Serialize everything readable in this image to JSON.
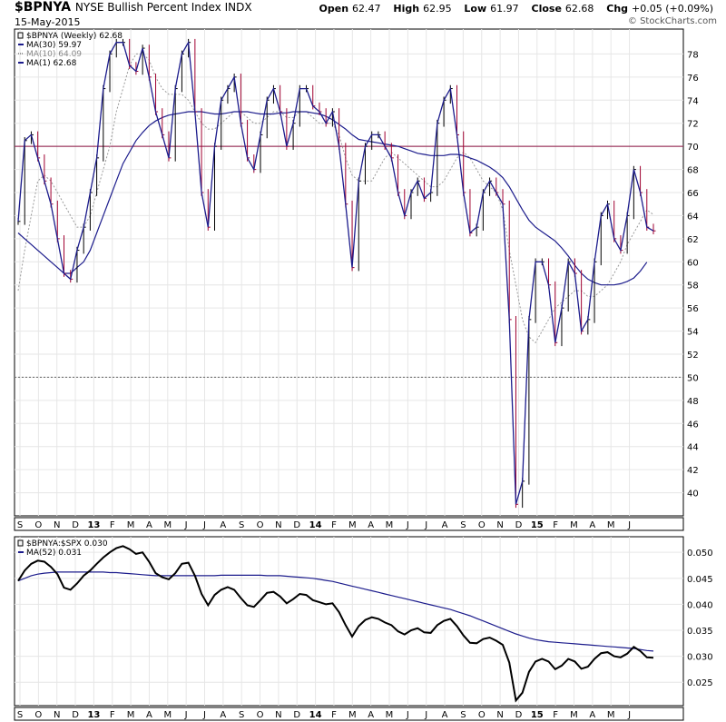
{
  "header": {
    "symbol": "$BPNYA",
    "description": "NYSE Bullish Percent Index",
    "exchange": "INDX",
    "date": "15-May-2015",
    "open_label": "Open",
    "open": "62.47",
    "high_label": "High",
    "high": "62.95",
    "low_label": "Low",
    "low": "61.97",
    "close_label": "Close",
    "close": "62.68",
    "chg_label": "Chg",
    "chg": "+0.05 (+0.09%)",
    "credit": "© StockCharts.com"
  },
  "colors": {
    "up": "#000000",
    "down": "#a00030",
    "ma30": "#1c1c8c",
    "ma10": "#999999",
    "ref": "#8b1040",
    "ratio": "#000000",
    "ma52": "#1c1c8c"
  },
  "chart_data": [
    {
      "type": "line",
      "title": "$BPNYA (Weekly) 62.68",
      "legend": [
        {
          "label": "$BPNYA (Weekly) 62.68",
          "color": "#000000"
        },
        {
          "label": "MA(30) 59.97",
          "color": "#1c1c8c"
        },
        {
          "label": "MA(10) 64.09",
          "color": "#999999"
        },
        {
          "label": "MA(1) 62.68",
          "color": "#1c1c8c"
        }
      ],
      "legend_position": "top-left",
      "x_tick_labels": [
        "S",
        "O",
        "N",
        "D",
        "13",
        "F",
        "M",
        "A",
        "M",
        "J",
        "J",
        "A",
        "S",
        "O",
        "N",
        "D",
        "14",
        "F",
        "M",
        "A",
        "M",
        "J",
        "J",
        "A",
        "S",
        "O",
        "N",
        "D",
        "15",
        "F",
        "M",
        "A",
        "M",
        "J"
      ],
      "y_ticks": [
        40,
        42,
        44,
        46,
        48,
        50,
        52,
        54,
        56,
        58,
        60,
        62,
        64,
        66,
        68,
        70,
        72,
        74,
        76,
        78
      ],
      "ylim": [
        38,
        80
      ],
      "grid": true,
      "reference_lines": [
        {
          "y": 70,
          "style": "solid"
        },
        {
          "y": 50,
          "style": "dotted"
        }
      ],
      "series": [
        {
          "name": "$BPNYA",
          "values": [
            63.5,
            70.5,
            71,
            69,
            67,
            65,
            62,
            59,
            58.5,
            61,
            63,
            66,
            69,
            75,
            78,
            79,
            79,
            77,
            76.5,
            78.5,
            76,
            73,
            71,
            69,
            75,
            78,
            79,
            73,
            66,
            63,
            70,
            74,
            75,
            76,
            72,
            69,
            68,
            71,
            74,
            75,
            73,
            70,
            72,
            75,
            75,
            73.5,
            73,
            72,
            73,
            70,
            65,
            59.5,
            67,
            70,
            71,
            71,
            70,
            69,
            66,
            64,
            66,
            67,
            65.5,
            66,
            72,
            74,
            75,
            71,
            66,
            62.5,
            63,
            66,
            67,
            66,
            65,
            55,
            39,
            41,
            55,
            60,
            60,
            58,
            53,
            56,
            60,
            59,
            54,
            55,
            60,
            64,
            65,
            62,
            61,
            64,
            68,
            66,
            63,
            62.68
          ]
        },
        {
          "name": "MA(30)",
          "values": [
            62.5,
            62,
            61.5,
            61,
            60.5,
            60,
            59.5,
            59,
            59,
            59.5,
            60,
            61,
            62.5,
            64,
            65.5,
            67,
            68.5,
            69.5,
            70.5,
            71.2,
            71.8,
            72.2,
            72.5,
            72.7,
            72.8,
            72.9,
            73,
            73,
            73,
            72.9,
            72.8,
            72.8,
            72.9,
            73,
            73,
            73,
            72.9,
            72.8,
            72.8,
            72.8,
            72.9,
            72.9,
            73,
            73,
            73,
            72.9,
            72.8,
            72.6,
            72.3,
            71.9,
            71.5,
            71,
            70.6,
            70.5,
            70.4,
            70.3,
            70.2,
            70.1,
            70,
            69.8,
            69.6,
            69.4,
            69.3,
            69.2,
            69.2,
            69.2,
            69.3,
            69.3,
            69.2,
            69,
            68.8,
            68.5,
            68.2,
            67.8,
            67.3,
            66.5,
            65.5,
            64.5,
            63.6,
            63,
            62.6,
            62.2,
            61.8,
            61.2,
            60.5,
            59.7,
            59,
            58.5,
            58.2,
            58,
            58,
            58,
            58.1,
            58.3,
            58.6,
            59.2,
            59.97
          ]
        },
        {
          "name": "MA(10)",
          "values": [
            57.5,
            61,
            64,
            67,
            67.5,
            67,
            66,
            65,
            64,
            63,
            63,
            64,
            66,
            68,
            70,
            73,
            75,
            77,
            78,
            78,
            77.5,
            76,
            75,
            74.5,
            74.5,
            74.5,
            74,
            73,
            72,
            71.5,
            71.5,
            72,
            72.5,
            73,
            73,
            72.5,
            72,
            72,
            72.5,
            73,
            73,
            72.5,
            72.5,
            73,
            73,
            72.5,
            72,
            72,
            72,
            71,
            69,
            67.5,
            67,
            67,
            67,
            68,
            69,
            69.5,
            69,
            68.5,
            68,
            67.5,
            67,
            66.5,
            66.5,
            67,
            68,
            69,
            69.5,
            69,
            68,
            67,
            66.5,
            66,
            64.5,
            61,
            58,
            55,
            53.5,
            53,
            54,
            55,
            56,
            56.5,
            57,
            57.5,
            57.5,
            57,
            57,
            57.5,
            58,
            59,
            60,
            61.5,
            62.5,
            63.5,
            64.5,
            64.09
          ]
        }
      ]
    },
    {
      "type": "line",
      "title": "$BPNYA:$SPX 0.030",
      "legend": [
        {
          "label": "$BPNYA:$SPX 0.030",
          "color": "#000000"
        },
        {
          "label": "MA(52) 0.031",
          "color": "#1c1c8c"
        }
      ],
      "legend_position": "top-left",
      "y_ticks": [
        0.025,
        0.03,
        0.035,
        0.04,
        0.045,
        0.05
      ],
      "y_tick_labels": [
        "0.025",
        "0.030",
        "0.035",
        "0.040",
        "0.045",
        "0.050"
      ],
      "ylim": [
        0.0205,
        0.053
      ],
      "grid": true,
      "series": [
        {
          "name": "$BPNYA:$SPX",
          "values": [
            0.0445,
            0.0465,
            0.0478,
            0.0484,
            0.0482,
            0.0472,
            0.0458,
            0.0432,
            0.0428,
            0.044,
            0.0455,
            0.0465,
            0.0478,
            0.049,
            0.05,
            0.0508,
            0.0512,
            0.0506,
            0.0497,
            0.05,
            0.0482,
            0.046,
            0.0452,
            0.0448,
            0.046,
            0.0478,
            0.048,
            0.0455,
            0.042,
            0.0398,
            0.0418,
            0.0428,
            0.0433,
            0.0428,
            0.0412,
            0.0398,
            0.0395,
            0.0408,
            0.0422,
            0.0424,
            0.0415,
            0.0402,
            0.041,
            0.042,
            0.0418,
            0.0408,
            0.0404,
            0.04,
            0.0402,
            0.0385,
            0.036,
            0.0338,
            0.0358,
            0.037,
            0.0375,
            0.0372,
            0.0365,
            0.036,
            0.0348,
            0.0342,
            0.035,
            0.0354,
            0.0346,
            0.0345,
            0.036,
            0.0368,
            0.0372,
            0.0358,
            0.034,
            0.0326,
            0.0325,
            0.0333,
            0.0336,
            0.033,
            0.0322,
            0.0288,
            0.0215,
            0.023,
            0.027,
            0.029,
            0.0295,
            0.029,
            0.0275,
            0.0282,
            0.0295,
            0.029,
            0.0276,
            0.028,
            0.0295,
            0.0306,
            0.0308,
            0.03,
            0.0298,
            0.0305,
            0.0318,
            0.031,
            0.0298,
            0.0297
          ]
        },
        {
          "name": "MA(52)",
          "values": [
            0.0445,
            0.045,
            0.0455,
            0.0458,
            0.046,
            0.0461,
            0.0462,
            0.0462,
            0.0462,
            0.0462,
            0.0462,
            0.0462,
            0.0462,
            0.0462,
            0.0461,
            0.0461,
            0.046,
            0.0459,
            0.0458,
            0.0457,
            0.0456,
            0.0455,
            0.0455,
            0.0455,
            0.0455,
            0.0455,
            0.0455,
            0.0455,
            0.0455,
            0.0455,
            0.0455,
            0.0456,
            0.0456,
            0.0456,
            0.0456,
            0.0456,
            0.0456,
            0.0456,
            0.0455,
            0.0455,
            0.0455,
            0.0454,
            0.0453,
            0.0452,
            0.0451,
            0.045,
            0.0448,
            0.0446,
            0.0444,
            0.0441,
            0.0438,
            0.0435,
            0.0432,
            0.0429,
            0.0426,
            0.0423,
            0.042,
            0.0417,
            0.0414,
            0.0411,
            0.0408,
            0.0405,
            0.0402,
            0.0399,
            0.0396,
            0.0393,
            0.039,
            0.0386,
            0.0382,
            0.0378,
            0.0373,
            0.0368,
            0.0363,
            0.0358,
            0.0353,
            0.0348,
            0.0343,
            0.0339,
            0.0335,
            0.0332,
            0.033,
            0.0328,
            0.0327,
            0.0326,
            0.0325,
            0.0324,
            0.0323,
            0.0322,
            0.0321,
            0.032,
            0.0319,
            0.0318,
            0.0317,
            0.0316,
            0.0315,
            0.0313,
            0.0311,
            0.031
          ]
        }
      ]
    }
  ]
}
